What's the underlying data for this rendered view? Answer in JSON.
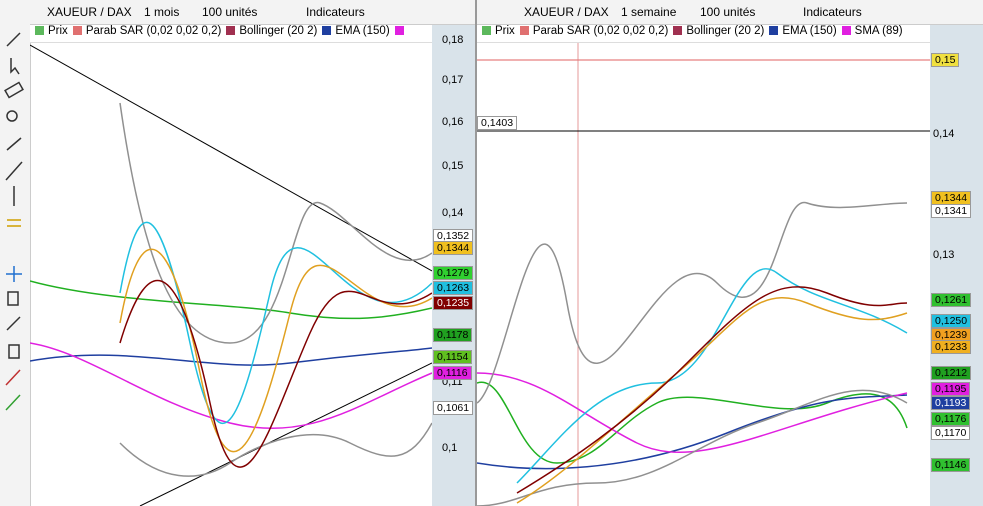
{
  "left_panel": {
    "toolbar": {
      "symbol": "XAUEUR / DAX",
      "period": "1 mois",
      "units": "100 unités",
      "indicators": "Indicateurs"
    },
    "legend": [
      {
        "label": "Prix",
        "color": "#5cb85c"
      },
      {
        "label": "Parab SAR (0,02 0,02 0,2)",
        "color": "#e07070"
      },
      {
        "label": "Bollinger (20 2)",
        "color": "#a03050"
      },
      {
        "label": "EMA (150)",
        "color": "#1f3fa0"
      },
      {
        "label": "",
        "color": "#e020e0"
      }
    ],
    "axis_labels": [
      "0,18",
      "0,17",
      "0,16",
      "0,15",
      "0,14",
      "0,11",
      "0,1"
    ],
    "price_tags": [
      {
        "label": "0,1352",
        "color": "#ffffff"
      },
      {
        "label": "0,1344",
        "color": "#f0c020"
      },
      {
        "label": "0,1279",
        "color": "#30d030"
      },
      {
        "label": "0,1263",
        "color": "#20c0e0"
      },
      {
        "label": "0,1235",
        "color": "#800000"
      },
      {
        "label": "0,1178",
        "color": "#20a020"
      },
      {
        "label": "0,1154",
        "color": "#60c020"
      },
      {
        "label": "0,1116",
        "color": "#e020e0"
      },
      {
        "label": "0,1061",
        "color": "#ffffff"
      }
    ]
  },
  "right_panel": {
    "toolbar": {
      "symbol": "XAUEUR / DAX",
      "period": "1 semaine",
      "units": "100 unités",
      "indicators": "Indicateurs"
    },
    "legend": [
      {
        "label": "Prix",
        "color": "#5cb85c"
      },
      {
        "label": "Parab SAR (0,02 0,02 0,2)",
        "color": "#e07070"
      },
      {
        "label": "Bollinger (20 2)",
        "color": "#a03050"
      },
      {
        "label": "EMA (150)",
        "color": "#1f3fa0"
      },
      {
        "label": "SMA (89)",
        "color": "#e020e0"
      }
    ],
    "axis_labels": [
      "0,14",
      "0,13"
    ],
    "price_tags": [
      {
        "label": "0,15",
        "color": "#f0e040"
      },
      {
        "label": "0,1344",
        "color": "#f0c020"
      },
      {
        "label": "0,1341",
        "color": "#ffffff"
      },
      {
        "label": "0,1261",
        "color": "#30c030"
      },
      {
        "label": "0,1250",
        "color": "#20c0e0"
      },
      {
        "label": "0,1239",
        "color": "#f0a020"
      },
      {
        "label": "0,1233",
        "color": "#f0b020"
      },
      {
        "label": "0,1212",
        "color": "#20a020"
      },
      {
        "label": "0,1195",
        "color": "#e020e0"
      },
      {
        "label": "0,1193",
        "color": "#1f3fa0"
      },
      {
        "label": "0,1176",
        "color": "#30c030"
      },
      {
        "label": "0,1170",
        "color": "#ffffff"
      },
      {
        "label": "0,1146",
        "color": "#30c030"
      }
    ],
    "crosshair_label": "0,1403"
  }
}
